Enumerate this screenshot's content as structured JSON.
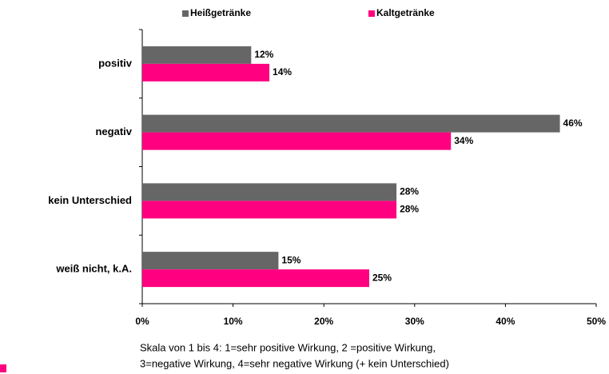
{
  "chart_data": {
    "type": "bar",
    "orientation": "horizontal",
    "categories": [
      "positiv",
      "negativ",
      "kein Unterschied",
      "weiß nicht, k.A."
    ],
    "series": [
      {
        "name": "Heißgetränke",
        "color": "#666666",
        "values": [
          12,
          46,
          28,
          15
        ],
        "value_labels": [
          "12%",
          "46%",
          "28%",
          "15%"
        ]
      },
      {
        "name": "Kaltgetränke",
        "color": "#ff0080",
        "values": [
          14,
          34,
          28,
          25
        ],
        "value_labels": [
          "14%",
          "34%",
          "28%",
          "25%"
        ]
      }
    ],
    "xlim": [
      0,
      50
    ],
    "xticks": [
      {
        "value": 0,
        "label": "0%"
      },
      {
        "value": 10,
        "label": "10%"
      },
      {
        "value": 20,
        "label": "20%"
      },
      {
        "value": 30,
        "label": "30%"
      },
      {
        "value": 40,
        "label": "40%"
      },
      {
        "value": 50,
        "label": "50%"
      }
    ],
    "legend": "top",
    "annotations": [
      "Skala von 1 bis 4: 1=sehr positive Wirkung, 2 =positive Wirkung,",
      "3=negative Wirkung, 4=sehr negative Wirkung (+ kein Unterschied)"
    ]
  }
}
